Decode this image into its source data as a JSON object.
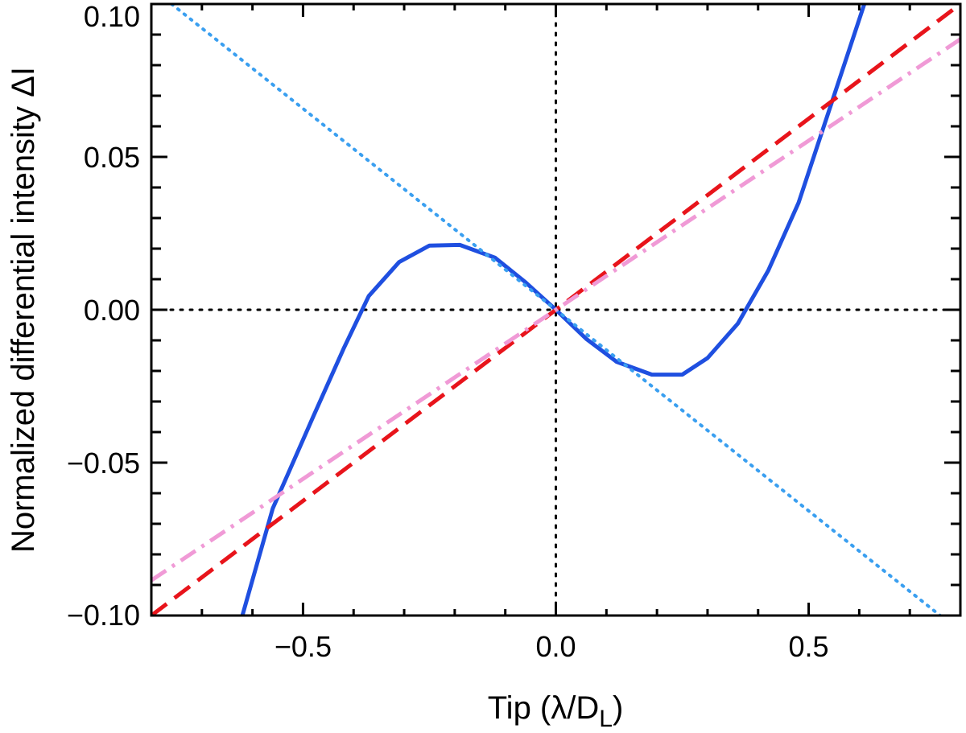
{
  "chart_data": {
    "type": "line",
    "title": "",
    "xlabel": "Tip (λ/D",
    "xlabel_sub": "L",
    "xlabel_close": ")",
    "ylabel": "Normalized differential intensity ΔI",
    "xlim": [
      -0.8,
      0.8
    ],
    "ylim": [
      -0.1,
      0.1
    ],
    "x_ticks": [
      -0.5,
      0.0,
      0.5
    ],
    "x_tick_labels": [
      "−0.5",
      "0.0",
      "0.5"
    ],
    "y_ticks": [
      -0.1,
      -0.05,
      0.0,
      0.05,
      0.1
    ],
    "y_tick_labels": [
      "−0.10",
      "−0.05",
      "0.00",
      "0.05",
      "0.10"
    ],
    "reference_lines": {
      "x0": 0.0,
      "y0": 0.0,
      "color": "#000000",
      "style": "dotted"
    },
    "series": [
      {
        "name": "solid-blue",
        "style": "solid",
        "color": "#1f4fe0",
        "x": [
          -0.62,
          -0.56,
          -0.48,
          -0.42,
          -0.37,
          -0.31,
          -0.25,
          -0.19,
          -0.12,
          -0.06,
          0.0,
          0.06,
          0.12,
          0.19,
          0.25,
          0.3,
          0.36,
          0.42,
          0.48,
          0.53,
          0.61
        ],
        "y": [
          -0.1,
          -0.065,
          -0.035,
          -0.0128,
          0.0045,
          0.0156,
          0.021,
          0.0212,
          0.017,
          0.009,
          0.0,
          -0.0095,
          -0.017,
          -0.0212,
          -0.0212,
          -0.0158,
          -0.0045,
          0.0128,
          0.035,
          0.06,
          0.1
        ]
      },
      {
        "name": "dotted-light-blue",
        "style": "dotted",
        "color": "#3a9ff0",
        "x": [
          -0.76,
          0.76
        ],
        "y": [
          0.1,
          -0.1
        ]
      },
      {
        "name": "dashed-red",
        "style": "dashed",
        "color": "#e8141b",
        "x": [
          -0.8,
          0.8
        ],
        "y": [
          -0.1,
          0.1
        ]
      },
      {
        "name": "dash-dot-pink",
        "style": "dash-dot",
        "color": "#f09ad6",
        "x": [
          -0.8,
          0.8
        ],
        "y": [
          -0.0885,
          0.0885
        ]
      }
    ]
  }
}
